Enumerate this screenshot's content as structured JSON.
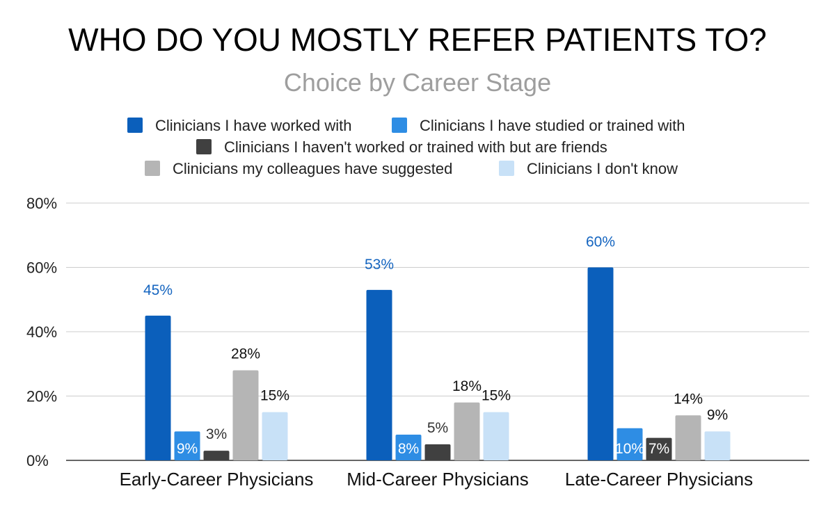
{
  "chart_data": {
    "type": "bar",
    "title": "WHO DO YOU MOSTLY REFER PATIENTS TO?",
    "subtitle": "Choice by Career Stage",
    "categories": [
      "Early-Career Physicians",
      "Mid-Career Physicians",
      "Late-Career Physicians"
    ],
    "series": [
      {
        "name": "Clinicians I have worked with",
        "color": "#0b5fbb",
        "values": [
          45,
          53,
          60
        ],
        "labels": [
          "45%",
          "53%",
          "60%"
        ],
        "label_color": "#1565c0",
        "label_inside": false
      },
      {
        "name": "Clinicians I have studied or trained with",
        "color": "#2e8de4",
        "values": [
          9,
          8,
          10
        ],
        "labels": [
          "9%",
          "8%",
          "10%"
        ],
        "label_color": "#ffffff",
        "label_inside": true
      },
      {
        "name": "Clinicians I haven't worked or trained with but are friends",
        "color": "#404040",
        "values": [
          3,
          5,
          7
        ],
        "labels": [
          "3%",
          "5%",
          "7%"
        ],
        "label_color": "#333333",
        "label_inside": false
      },
      {
        "name": "Clinicians my colleagues have suggested",
        "color": "#b5b5b5",
        "values": [
          28,
          18,
          14
        ],
        "labels": [
          "28%",
          "18%",
          "14%"
        ],
        "label_color": "#111111",
        "label_inside": false
      },
      {
        "name": "Clinicians I don't know",
        "color": "#c8e1f7",
        "values": [
          15,
          15,
          9
        ],
        "labels": [
          "15%",
          "15%",
          "9%"
        ],
        "label_color": "#111111",
        "label_inside": false
      }
    ],
    "y_ticks": [
      "0%",
      "20%",
      "40%",
      "60%",
      "80%"
    ],
    "ylim": [
      0,
      80
    ],
    "xlabel": "",
    "ylabel": "",
    "grid": true,
    "legend_position": "top"
  }
}
